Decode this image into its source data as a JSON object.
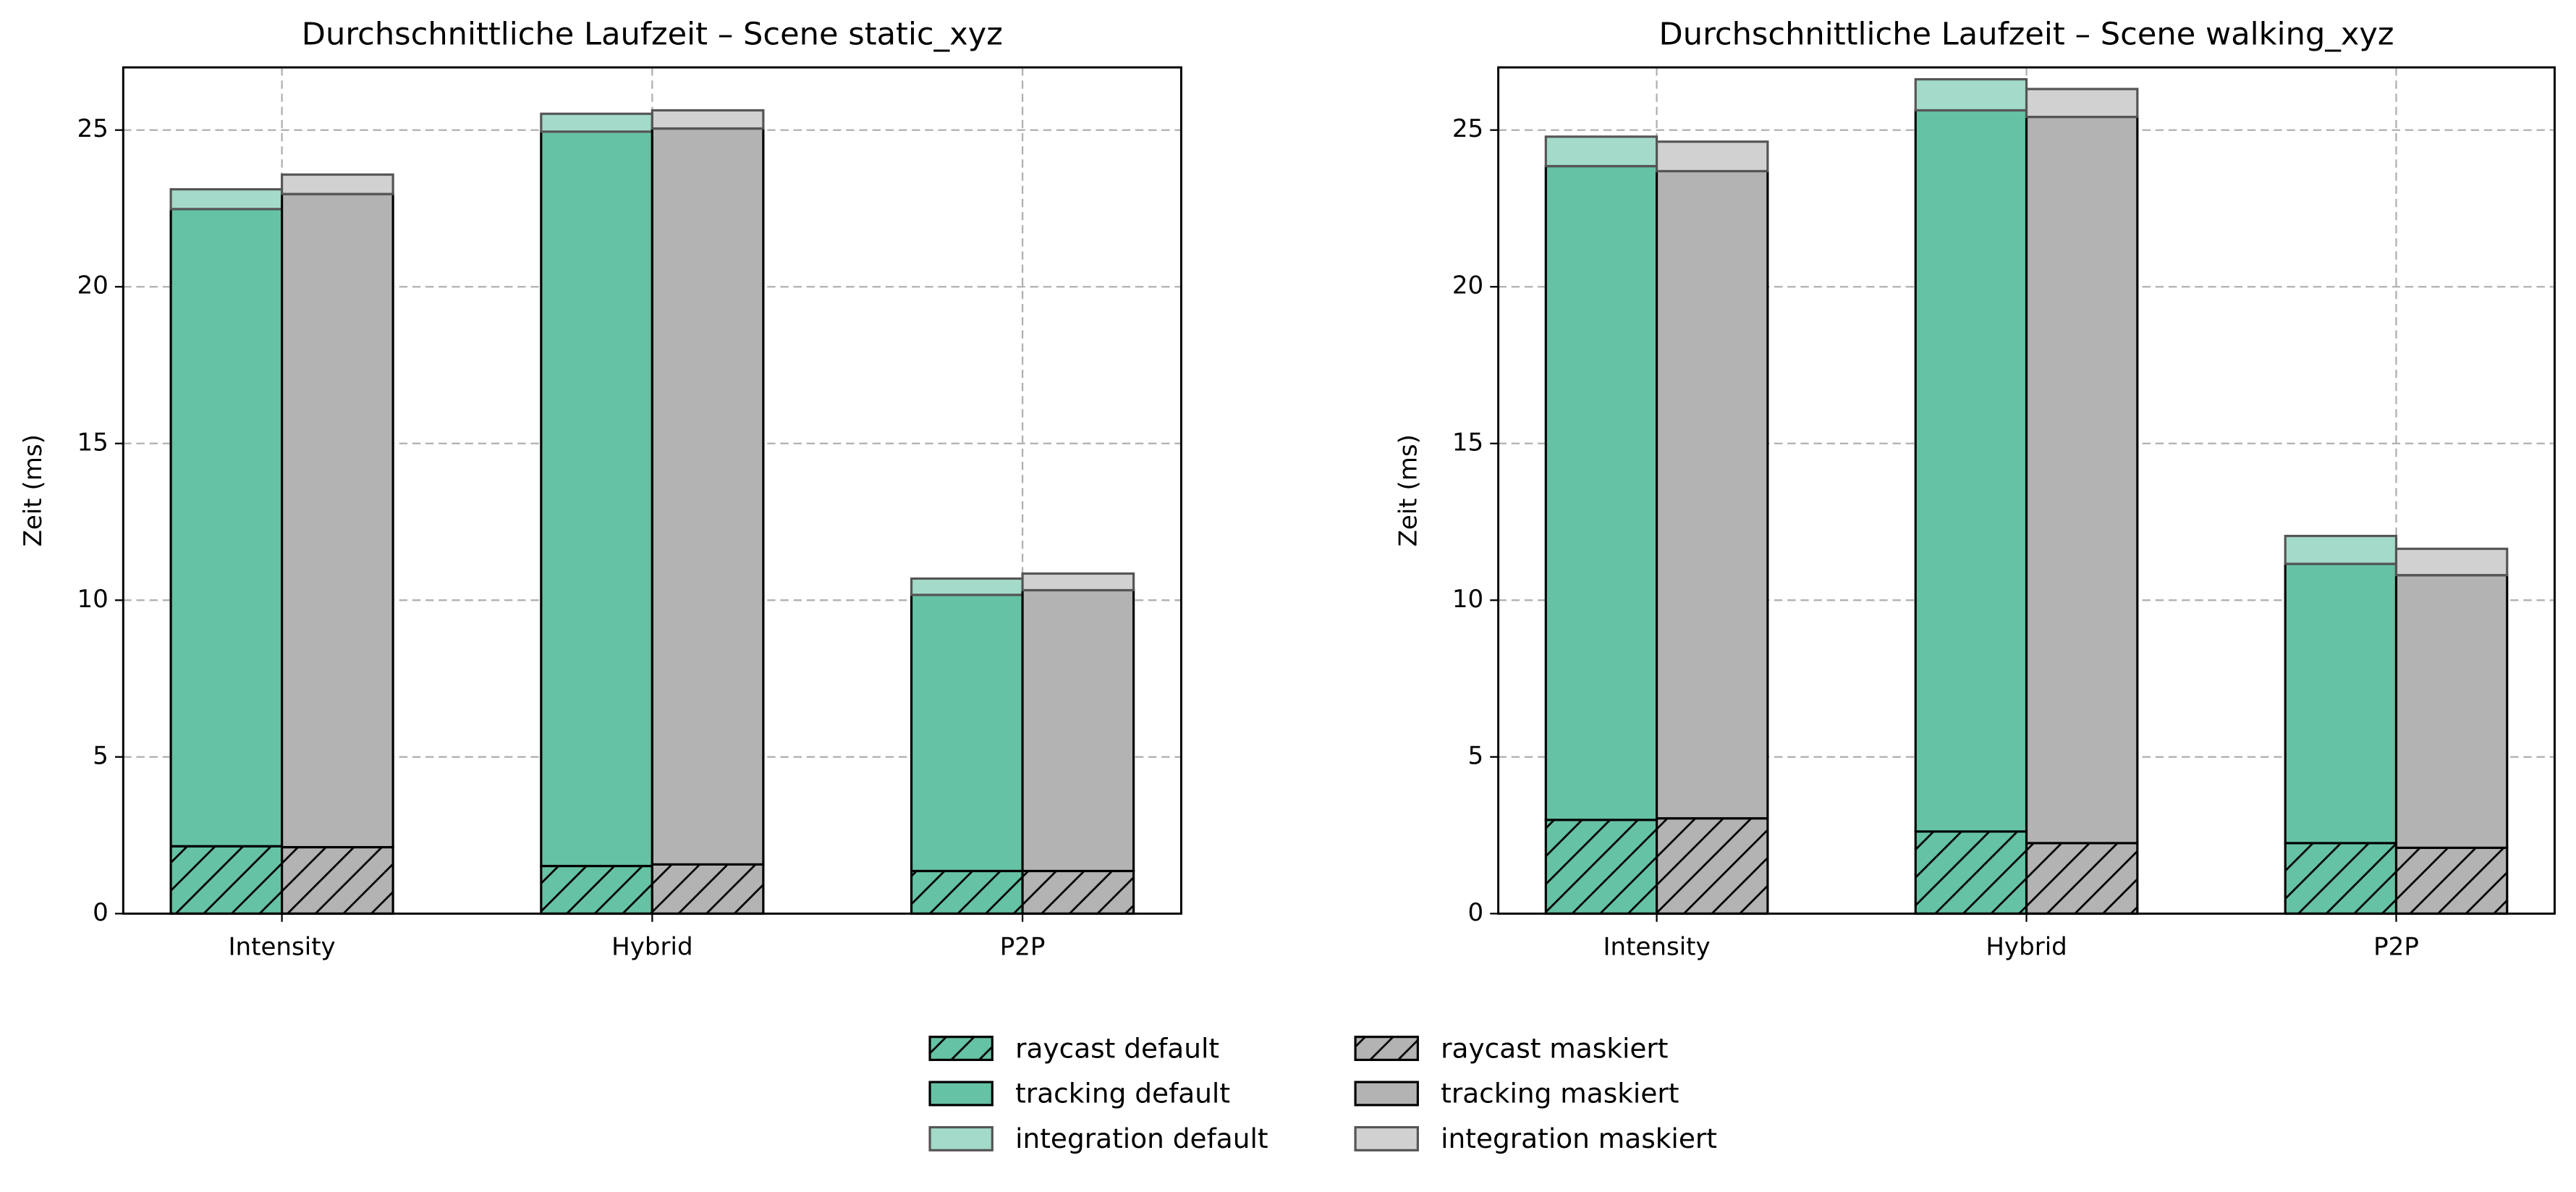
{
  "chart_data": [
    {
      "type": "bar",
      "title": "Durchschnittliche Laufzeit – Scene static_xyz",
      "ylabel": "Zeit (ms)",
      "categories": [
        "Intensity",
        "Hybrid",
        "P2P"
      ],
      "ylim": [
        0,
        27
      ],
      "yticks": [
        0,
        5,
        10,
        15,
        20,
        25
      ],
      "grid": true,
      "series": [
        {
          "name": "raycast default",
          "color": "#66c2a5",
          "hatch": "/",
          "values": [
            2.15,
            1.52,
            1.36
          ]
        },
        {
          "name": "tracking default",
          "color": "#66c2a5",
          "values": [
            20.33,
            23.43,
            8.81
          ]
        },
        {
          "name": "integration default",
          "color": "#a3dac9",
          "values": [
            0.63,
            0.57,
            0.52
          ]
        },
        {
          "name": "raycast maskiert",
          "color": "#b3b3b3",
          "hatch": "/",
          "values": [
            2.12,
            1.57,
            1.36
          ]
        },
        {
          "name": "tracking maskiert",
          "color": "#b3b3b3",
          "values": [
            20.84,
            23.48,
            8.96
          ]
        },
        {
          "name": "integration maskiert",
          "color": "#d1d1d1",
          "values": [
            0.62,
            0.58,
            0.53
          ]
        }
      ]
    },
    {
      "type": "bar",
      "title": "Durchschnittliche Laufzeit – Scene walking_xyz",
      "ylabel": "Zeit (ms)",
      "categories": [
        "Intensity",
        "Hybrid",
        "P2P"
      ],
      "ylim": [
        0,
        27
      ],
      "yticks": [
        0,
        5,
        10,
        15,
        20,
        25
      ],
      "grid": true,
      "series": [
        {
          "name": "raycast default",
          "color": "#66c2a5",
          "hatch": "/",
          "values": [
            2.99,
            2.62,
            2.25
          ]
        },
        {
          "name": "tracking default",
          "color": "#66c2a5",
          "values": [
            20.86,
            23.01,
            8.91
          ]
        },
        {
          "name": "integration default",
          "color": "#a3dac9",
          "values": [
            0.94,
            0.99,
            0.89
          ]
        },
        {
          "name": "raycast maskiert",
          "color": "#b3b3b3",
          "hatch": "/",
          "values": [
            3.04,
            2.25,
            2.1
          ]
        },
        {
          "name": "tracking maskiert",
          "color": "#b3b3b3",
          "values": [
            20.65,
            23.17,
            8.7
          ]
        },
        {
          "name": "integration maskiert",
          "color": "#d1d1d1",
          "values": [
            0.94,
            0.89,
            0.84
          ]
        }
      ]
    }
  ]
}
